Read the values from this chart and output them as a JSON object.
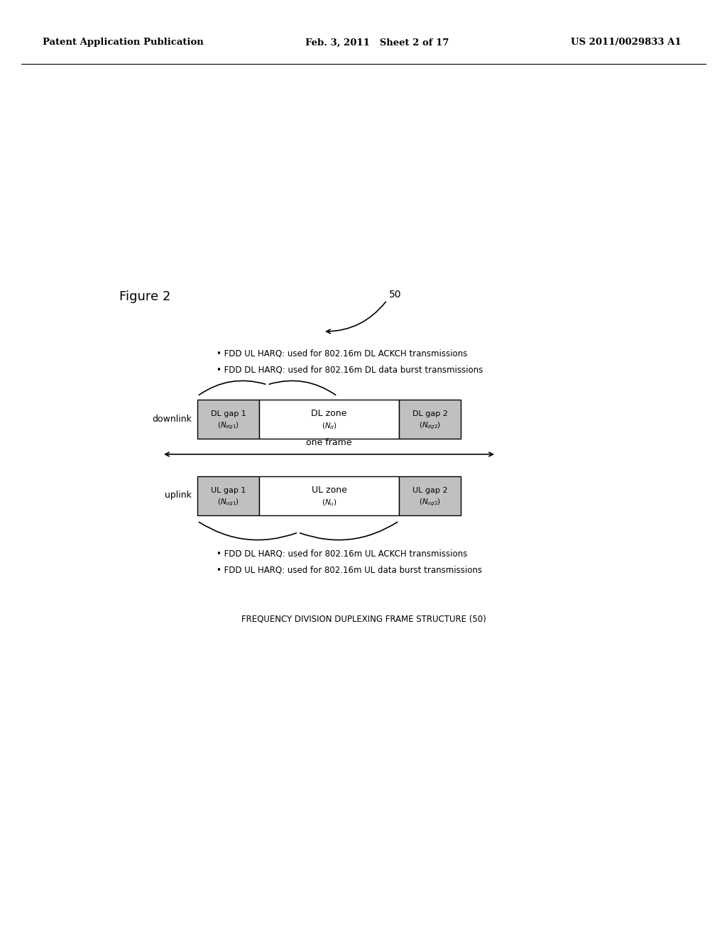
{
  "header_left": "Patent Application Publication",
  "header_mid": "Feb. 3, 2011   Sheet 2 of 17",
  "header_right": "US 2011/0029833 A1",
  "figure_label": "Figure 2",
  "ref_number": "50",
  "dl_bullet1": "• FDD UL HARQ: used for 802.16m DL ACKCH transmissions",
  "dl_bullet2": "• FDD DL HARQ: used for 802.16m DL data burst transmissions",
  "ul_bullet1": "• FDD DL HARQ: used for 802.16m UL ACKCH transmissions",
  "ul_bullet2": "• FDD UL HARQ: used for 802.16m UL data burst transmissions",
  "downlink_label": "downlink",
  "uplink_label": "uplink",
  "one_frame_label": "one frame",
  "dl_gap1_label": "DL gap 1",
  "dl_zone_label": "DL zone",
  "dl_gap2_label": "DL gap 2",
  "ul_gap1_label": "UL gap 1",
  "ul_zone_label": "UL zone",
  "ul_gap2_label": "UL gap 2",
  "caption": "FREQUENCY DIVISION DUPLEXING FRAME STRUCTURE (50)",
  "bg_color": "#ffffff",
  "box_fill_gray": "#c0c0c0",
  "box_fill_white": "#ffffff",
  "box_edge": "#000000",
  "text_color": "#000000"
}
